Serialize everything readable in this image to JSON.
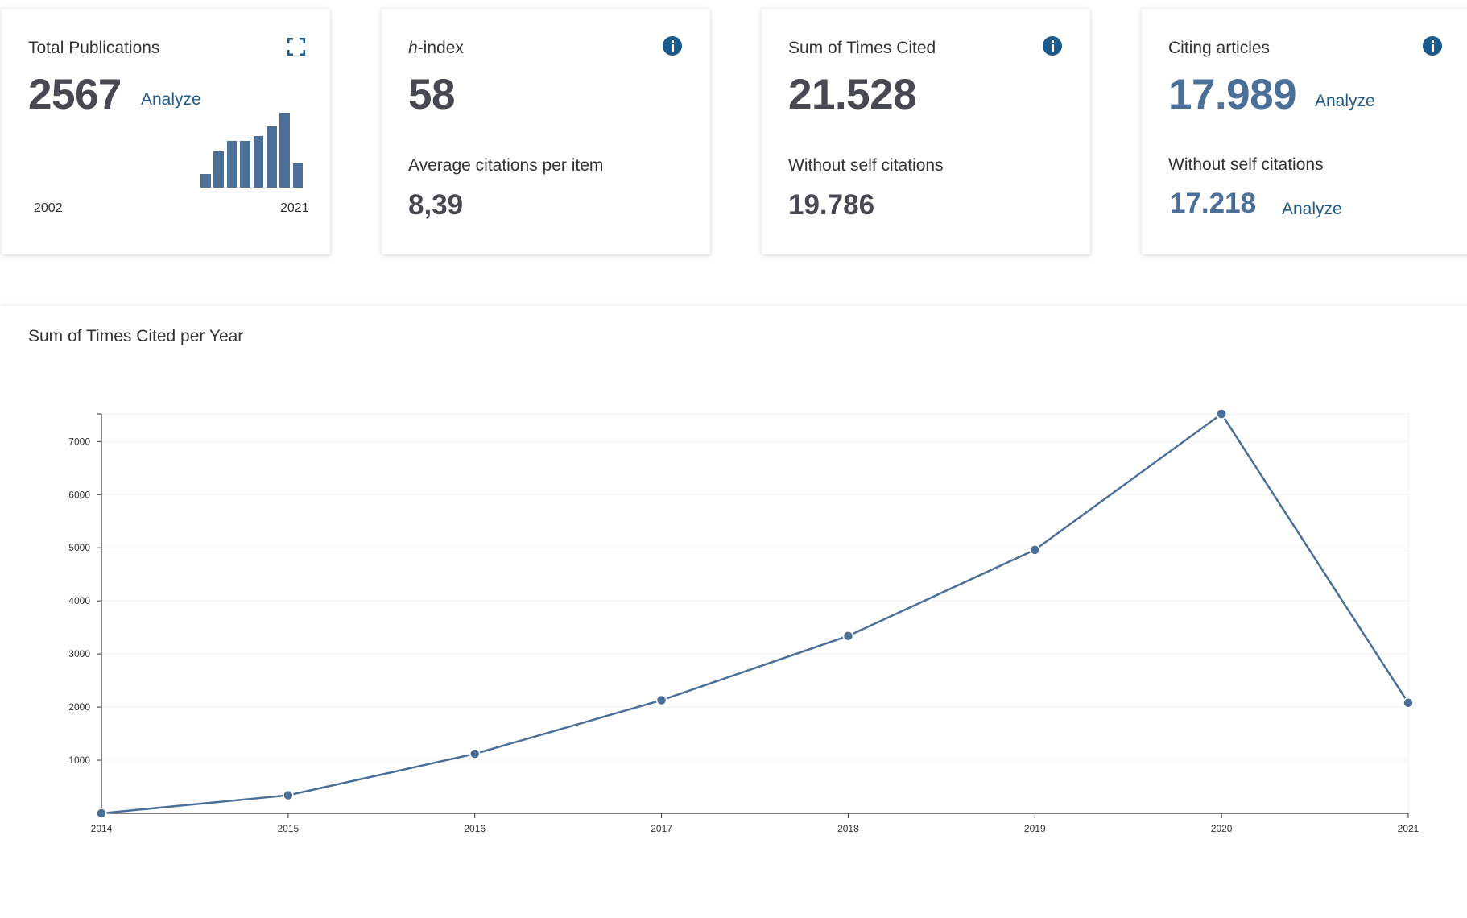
{
  "cards": {
    "total_publications": {
      "title": "Total Publications",
      "value": "2567",
      "analyze": "Analyze",
      "year_start": "2002",
      "year_end": "2021",
      "bar_levels": [
        0.18,
        0.48,
        0.62,
        0.62,
        0.69,
        0.82,
        1.0,
        0.32
      ]
    },
    "h_index": {
      "title_italic": "h",
      "title_rest": "-index",
      "value": "58",
      "sub_label": "Average citations per item",
      "sub_value": "8,39"
    },
    "sum_times_cited": {
      "title": "Sum of Times Cited",
      "value": "21.528",
      "sub_label": "Without self citations",
      "sub_value": "19.786"
    },
    "citing_articles": {
      "title": "Citing articles",
      "value": "17.989",
      "analyze": "Analyze",
      "sub_label": "Without self citations",
      "sub_value": "17.218",
      "sub_analyze": "Analyze"
    }
  },
  "colors": {
    "accent": "#4a6f98",
    "link": "#1f5b8a",
    "icon": "#1b5a8c"
  },
  "icons": {
    "expand": "expand-icon",
    "info": "info-icon"
  },
  "chart_data": {
    "type": "line",
    "title": "Sum of Times Cited per Year",
    "x": [
      "2014",
      "2015",
      "2016",
      "2017",
      "2018",
      "2019",
      "2020",
      "2021"
    ],
    "values": [
      0,
      340,
      1120,
      2130,
      3340,
      4960,
      7520,
      2080
    ],
    "yticks": [
      1000,
      2000,
      3000,
      4000,
      5000,
      6000,
      7000
    ],
    "ylim": [
      0,
      7520
    ],
    "grid": true
  }
}
